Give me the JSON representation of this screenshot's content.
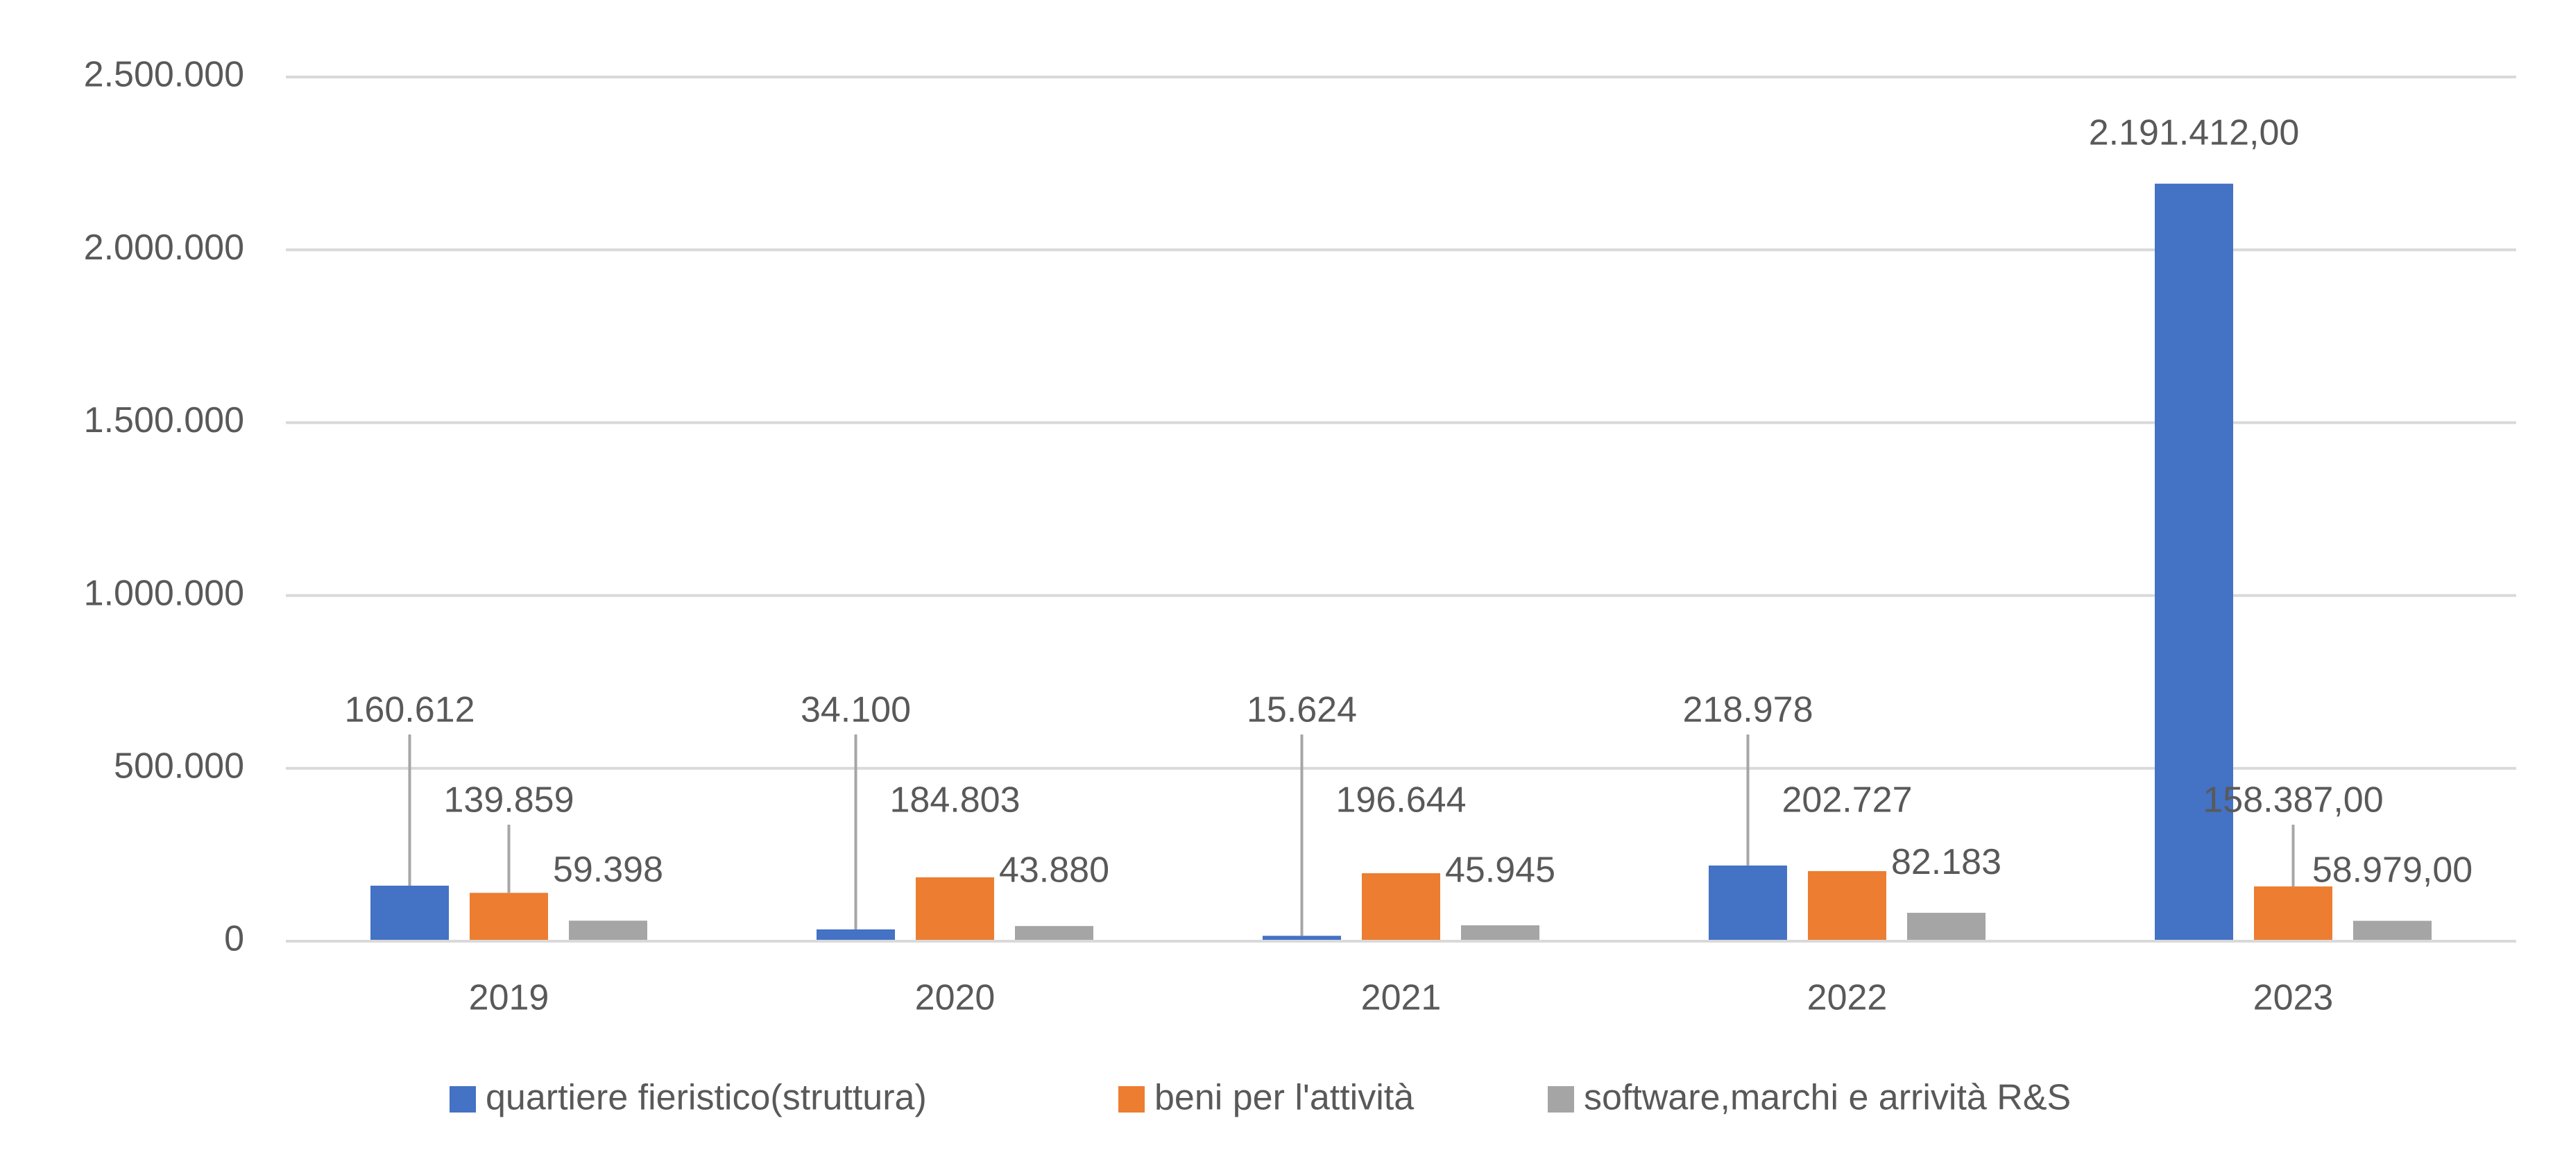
{
  "chart_data": {
    "type": "bar",
    "categories": [
      "2019",
      "2020",
      "2021",
      "2022",
      "2023"
    ],
    "series": [
      {
        "name": "quartiere fieristico(struttura)",
        "color": "#4472c4",
        "values": [
          160612,
          34100,
          15624,
          218978,
          2191412
        ],
        "value_labels": [
          "160.612",
          "34.100",
          "15.624",
          "218.978",
          "2.191.412,00"
        ]
      },
      {
        "name": "beni per l'attività",
        "color": "#ed7d31",
        "values": [
          139859,
          184803,
          196644,
          202727,
          158387
        ],
        "value_labels": [
          "139.859",
          "184.803",
          "196.644",
          "202.727",
          "158.387,00"
        ]
      },
      {
        "name": "software,marchi e arrività R&S",
        "color": "#a5a5a5",
        "values": [
          59398,
          43880,
          45945,
          82183,
          58979
        ],
        "value_labels": [
          "59.398",
          "43.880",
          "45.945",
          "82.183",
          "58.979,00"
        ]
      }
    ],
    "ylim": [
      0,
      2500000
    ],
    "yticks": [
      0,
      {
        "value": 500000,
        "label": "500.000"
      },
      {
        "value": 1000000,
        "label": "1.000.000"
      },
      {
        "value": 1500000,
        "label": "1.500.000"
      },
      {
        "value": 2000000,
        "label": "2.000.000"
      },
      {
        "value": 2500000,
        "label": "2.500.000"
      }
    ],
    "grid": true,
    "legend": "bottom"
  }
}
